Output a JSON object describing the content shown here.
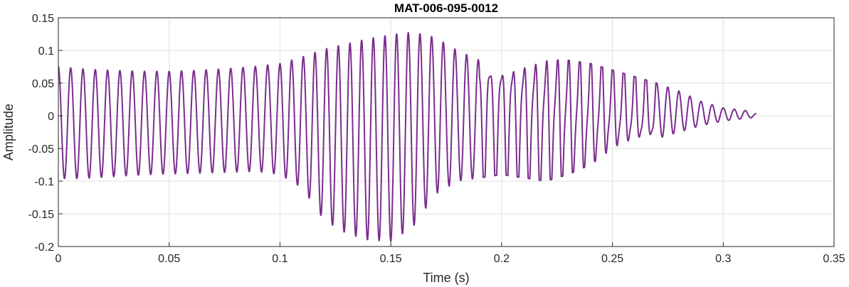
{
  "chart_data": {
    "type": "line",
    "title": "MAT-006-095-0012",
    "xlabel": "Time (s)",
    "ylabel": "Amplitude",
    "xlim": [
      0,
      0.35
    ],
    "ylim": [
      -0.2,
      0.15
    ],
    "grid": true,
    "legend": "none",
    "x_ticks": [
      0,
      0.05,
      0.1,
      0.15,
      0.2,
      0.25,
      0.3,
      0.35
    ],
    "x_tick_labels": [
      "0",
      "0.05",
      "0.1",
      "0.15",
      "0.2",
      "0.25",
      "0.3",
      "0.35"
    ],
    "y_ticks": [
      0.15,
      0.1,
      0.05,
      0,
      -0.05,
      -0.1,
      -0.15,
      -0.2
    ],
    "y_tick_labels": [
      "0.15",
      "0.1",
      "0.05",
      "0",
      "-0.05",
      "-0.1",
      "-0.15",
      "-0.2"
    ],
    "series": [
      {
        "color": "#7B2D8E",
        "x": [
          0,
          0.01,
          0.02,
          0.03,
          0.04,
          0.05,
          0.06,
          0.07,
          0.08,
          0.09,
          0.1,
          0.11,
          0.12,
          0.13,
          0.14,
          0.15,
          0.16,
          0.17,
          0.18,
          0.19,
          0.2,
          0.21,
          0.22,
          0.23,
          0.24,
          0.25,
          0.26,
          0.27,
          0.28,
          0.29,
          0.3,
          0.31,
          0.315
        ],
        "upper": [
          0.075,
          0.072,
          0.07,
          0.069,
          0.068,
          0.068,
          0.069,
          0.071,
          0.073,
          0.076,
          0.08,
          0.09,
          0.102,
          0.11,
          0.118,
          0.124,
          0.128,
          0.12,
          0.1,
          0.085,
          0.078,
          0.082,
          0.085,
          0.085,
          0.08,
          0.07,
          0.06,
          0.05,
          0.038,
          0.022,
          0.012,
          0.008,
          0.003
        ],
        "lower": [
          -0.096,
          -0.096,
          -0.094,
          -0.092,
          -0.09,
          -0.089,
          -0.088,
          -0.087,
          -0.086,
          -0.085,
          -0.09,
          -0.11,
          -0.16,
          -0.18,
          -0.19,
          -0.192,
          -0.17,
          -0.12,
          -0.1,
          -0.095,
          -0.09,
          -0.095,
          -0.1,
          -0.09,
          -0.075,
          -0.05,
          -0.04,
          -0.035,
          -0.025,
          -0.015,
          -0.008,
          -0.004,
          -0.002
        ]
      }
    ]
  }
}
